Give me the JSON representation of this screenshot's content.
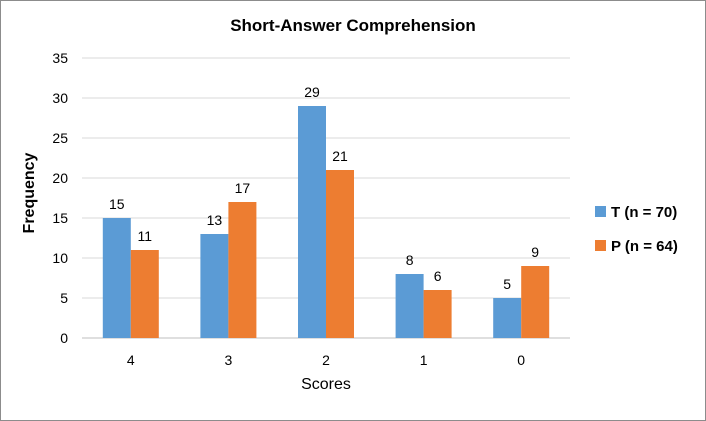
{
  "chart_data": {
    "type": "bar",
    "title": "Short-Answer Comprehension",
    "xlabel": "Scores",
    "ylabel": "Frequency",
    "categories": [
      "4",
      "3",
      "2",
      "1",
      "0"
    ],
    "ylim": [
      0,
      35
    ],
    "yticks": [
      0,
      5,
      10,
      15,
      20,
      25,
      30,
      35
    ],
    "grid": true,
    "legend_position": "right",
    "series": [
      {
        "name": "T (n = 70)",
        "color": "#5B9BD5",
        "values": [
          15,
          13,
          29,
          8,
          5
        ]
      },
      {
        "name": "P (n = 64)",
        "color": "#ED7D31",
        "values": [
          11,
          17,
          21,
          6,
          9
        ]
      }
    ]
  }
}
